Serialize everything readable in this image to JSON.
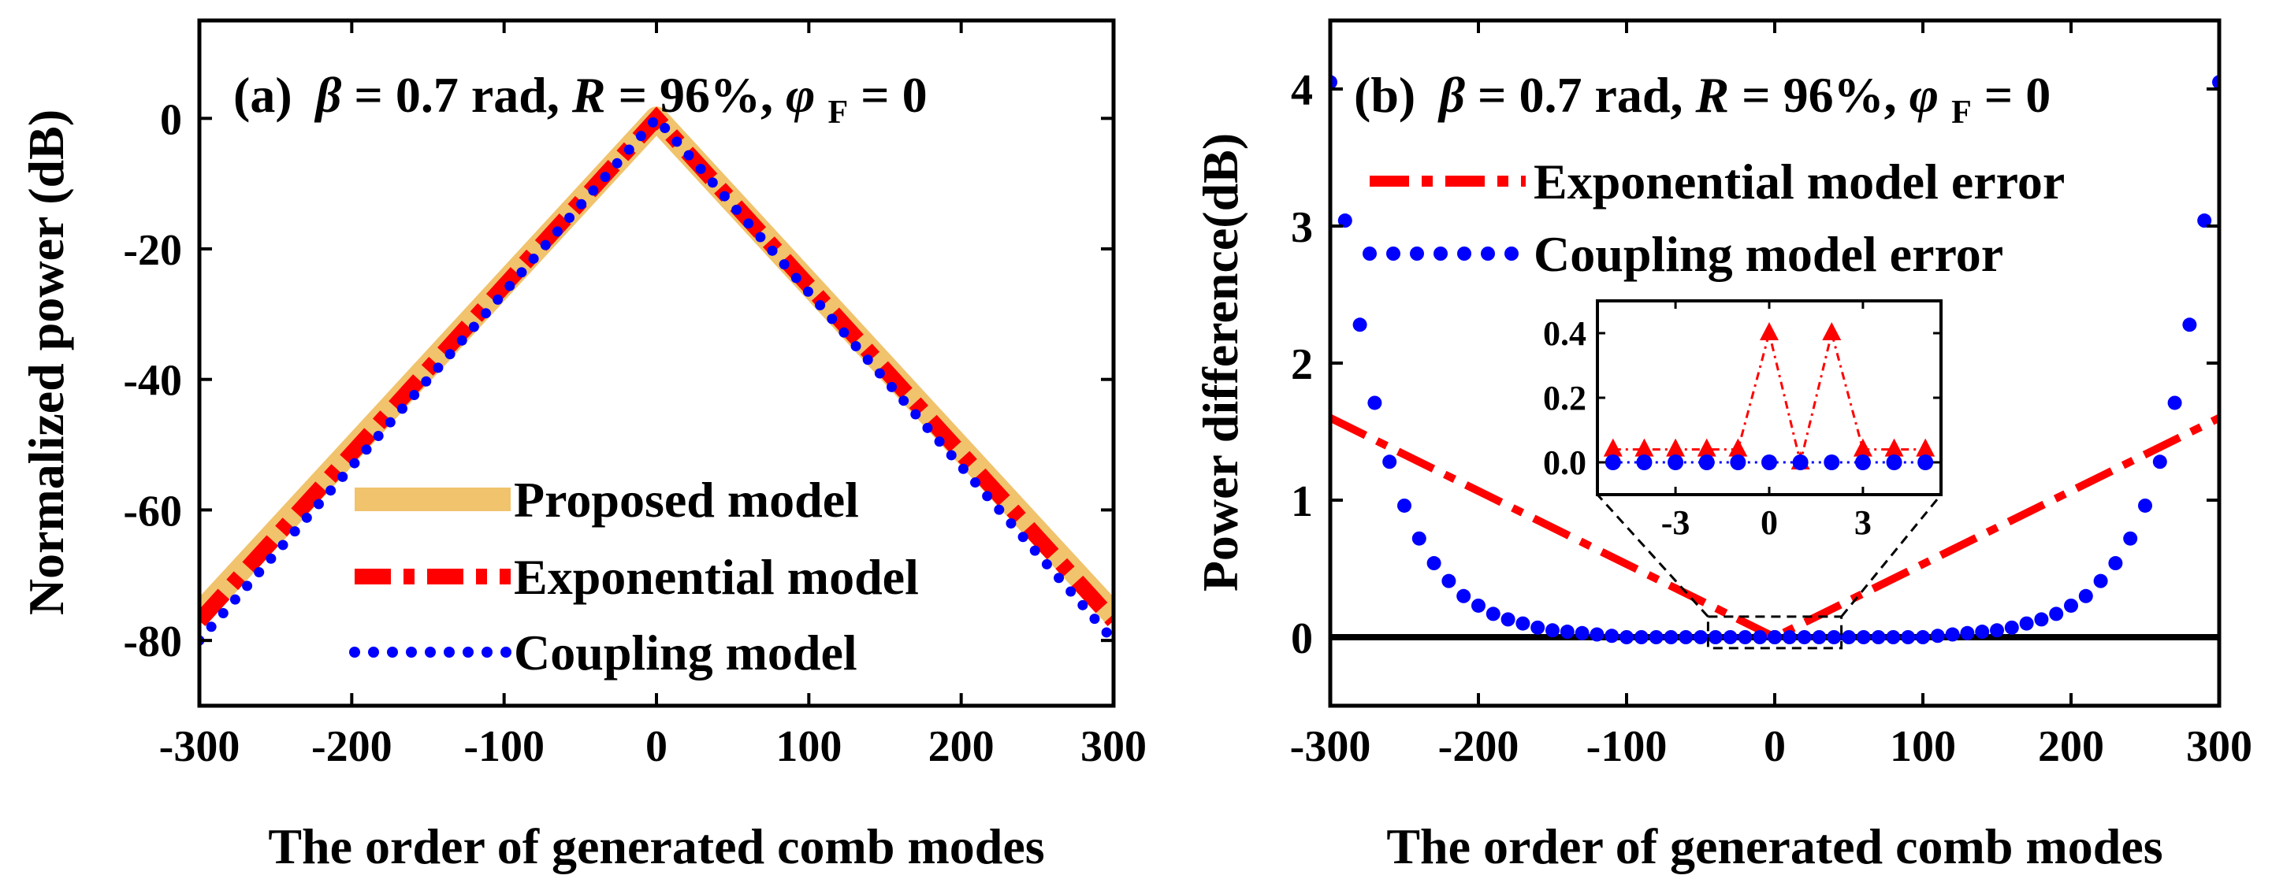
{
  "chart_data": [
    {
      "id": "a",
      "type": "line",
      "title": {
        "panel": "(a)",
        "beta_sym": "β",
        "beta_val": " = 0.7 rad, ",
        "r_sym": "R",
        "r_val": " = 96%, ",
        "phi_sym": "φ",
        "phi_sub": "F",
        "phi_val": " = 0"
      },
      "xlabel": "The order of generated comb modes",
      "ylabel": "Normalized power (dB)",
      "xlim": [
        -300,
        300
      ],
      "ylim": [
        -90,
        15
      ],
      "xticks": [
        -300,
        -200,
        -100,
        0,
        100,
        200,
        300
      ],
      "xtick_labels": [
        "-300",
        "-200",
        "-100",
        "0",
        "100",
        "200",
        "300"
      ],
      "yticks": [
        0,
        -20,
        -40,
        -60,
        -80
      ],
      "ytick_labels": [
        "0",
        "-20",
        "-40",
        "-60",
        "-80"
      ],
      "legend_position": "bottom-right",
      "series": [
        {
          "name": "Proposed model",
          "style": "solid",
          "color": "#F0C36C",
          "x": [
            -300,
            0,
            300
          ],
          "y": [
            -76,
            0,
            -76
          ]
        },
        {
          "name": "Exponential model",
          "style": "dashdot",
          "color": "#FF0000",
          "x": [
            -300,
            0,
            300
          ],
          "y": [
            -77,
            0,
            -77
          ]
        },
        {
          "name": "Coupling model",
          "style": "dotted",
          "color": "#0000FF",
          "x": [
            -300,
            0,
            300
          ],
          "y": [
            -80,
            0,
            -80
          ]
        }
      ]
    },
    {
      "id": "b",
      "type": "line",
      "title": {
        "panel": "(b)",
        "beta_sym": "β",
        "beta_val": " = 0.7 rad, ",
        "r_sym": "R",
        "r_val": " = 96%, ",
        "phi_sym": "φ",
        "phi_sub": "F",
        "phi_val": " = 0"
      },
      "xlabel": "The order of generated comb modes",
      "ylabel": "Power difference(dB)",
      "xlim": [
        -300,
        300
      ],
      "ylim": [
        -0.5,
        4.5
      ],
      "xticks": [
        -300,
        -200,
        -100,
        0,
        100,
        200,
        300
      ],
      "xtick_labels": [
        "-300",
        "-200",
        "-100",
        "0",
        "100",
        "200",
        "300"
      ],
      "yticks": [
        0,
        1,
        2,
        3,
        4
      ],
      "ytick_labels": [
        "0",
        "1",
        "2",
        "3",
        "4"
      ],
      "legend_position": "top-right",
      "series": [
        {
          "name": "Exponential model error",
          "style": "dashdot",
          "color": "#FF0000",
          "x": [
            -300,
            0,
            300
          ],
          "y": [
            1.6,
            0,
            1.6
          ]
        },
        {
          "name": "Coupling model error",
          "style": "dotted",
          "color": "#0000FF",
          "x": [
            -300,
            -290,
            -280,
            -270,
            -260,
            -250,
            -240,
            -230,
            -220,
            -210,
            -200,
            -190,
            -180,
            -170,
            -160,
            -150,
            -140,
            -130,
            -120,
            -110,
            -100,
            0,
            100,
            110,
            120,
            130,
            140,
            150,
            160,
            170,
            180,
            190,
            200,
            210,
            220,
            230,
            240,
            250,
            260,
            270,
            280,
            290,
            300
          ],
          "y": [
            4.05,
            3.04,
            2.28,
            1.71,
            1.28,
            0.96,
            0.72,
            0.54,
            0.41,
            0.3,
            0.23,
            0.17,
            0.13,
            0.1,
            0.07,
            0.05,
            0.04,
            0.03,
            0.02,
            0.01,
            0.0,
            0.0,
            0.0,
            0.01,
            0.02,
            0.03,
            0.04,
            0.05,
            0.07,
            0.1,
            0.13,
            0.17,
            0.23,
            0.3,
            0.41,
            0.54,
            0.72,
            0.96,
            1.28,
            1.71,
            2.28,
            3.04,
            4.05
          ]
        }
      ],
      "reference_line": {
        "y": 0,
        "color": "#000000"
      },
      "zoom_box": {
        "x": [
          -45,
          45
        ],
        "y": [
          -0.08,
          0.15
        ]
      },
      "inset": {
        "xlim": [
          -5.5,
          5.5
        ],
        "ylim": [
          -0.1,
          0.5
        ],
        "xticks": [
          -3,
          0,
          3
        ],
        "xtick_labels": [
          "-3",
          "0",
          "3"
        ],
        "yticks": [
          0.0,
          0.2,
          0.4
        ],
        "ytick_labels": [
          "0.0",
          "0.2",
          "0.4"
        ],
        "series": [
          {
            "name": "Exponential model error",
            "color": "#FF0000",
            "marker": "triangle",
            "x": [
              -5,
              -4,
              -3,
              -2,
              -1,
              0,
              1,
              2,
              3,
              4,
              5
            ],
            "y": [
              0.04,
              0.04,
              0.04,
              0.04,
              0.04,
              0.4,
              0.0,
              0.4,
              0.04,
              0.04,
              0.04
            ]
          },
          {
            "name": "Coupling model error",
            "color": "#0000FF",
            "marker": "circle",
            "x": [
              -5,
              -4,
              -3,
              -2,
              -1,
              0,
              1,
              2,
              3,
              4,
              5
            ],
            "y": [
              0,
              0,
              0,
              0,
              0,
              0,
              0,
              0,
              0,
              0,
              0
            ]
          }
        ]
      }
    }
  ]
}
